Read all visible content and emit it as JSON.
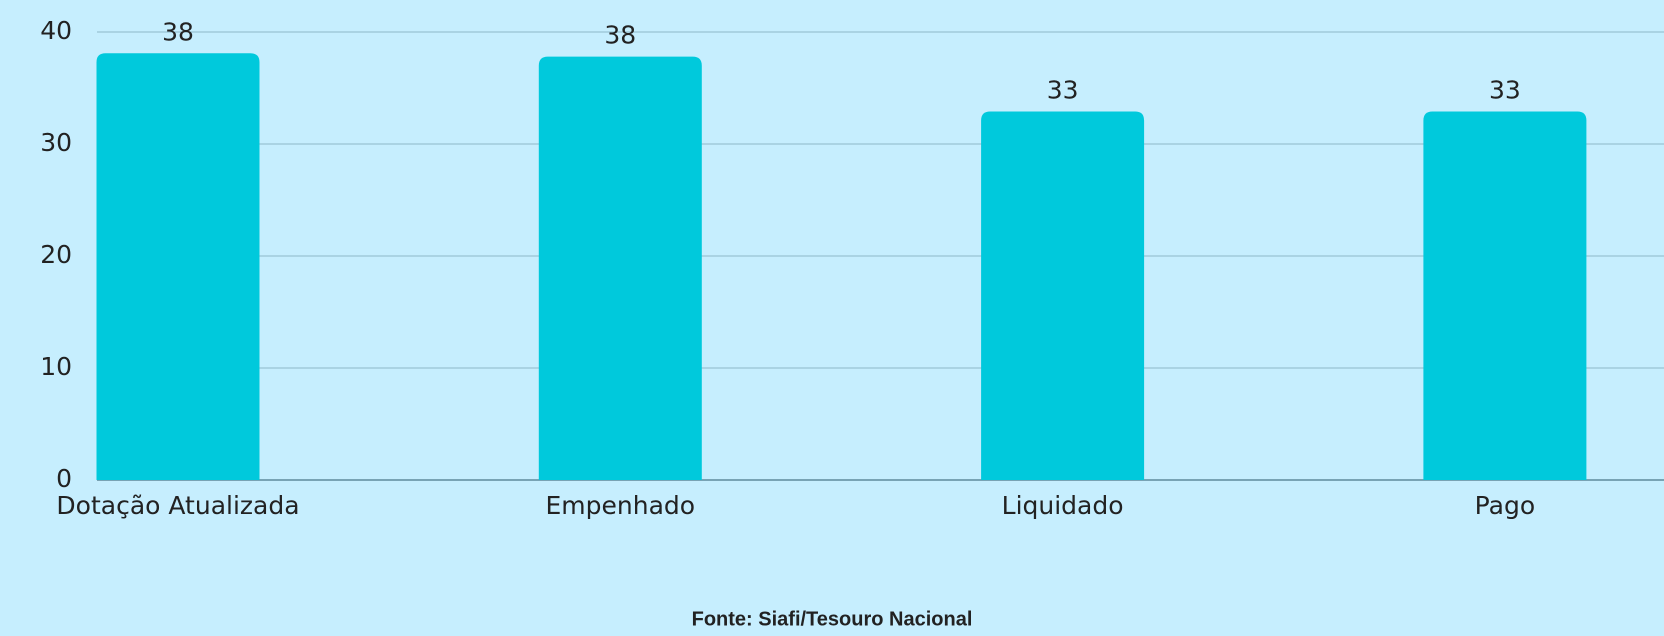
{
  "chart_data": {
    "type": "bar",
    "categories": [
      "Dotação Atualizada",
      "Empenhado",
      "Liquidado",
      "Pago"
    ],
    "values": [
      38.1,
      37.8,
      32.9,
      32.9
    ],
    "value_labels": [
      "38",
      "38",
      "33",
      "33"
    ],
    "color": "#00c9dc",
    "ylim": [
      0,
      40
    ],
    "yticks": [
      0,
      10,
      20,
      30,
      40
    ],
    "grid": true,
    "source": "Fonte: Siafi/Tesouro Nacional"
  }
}
